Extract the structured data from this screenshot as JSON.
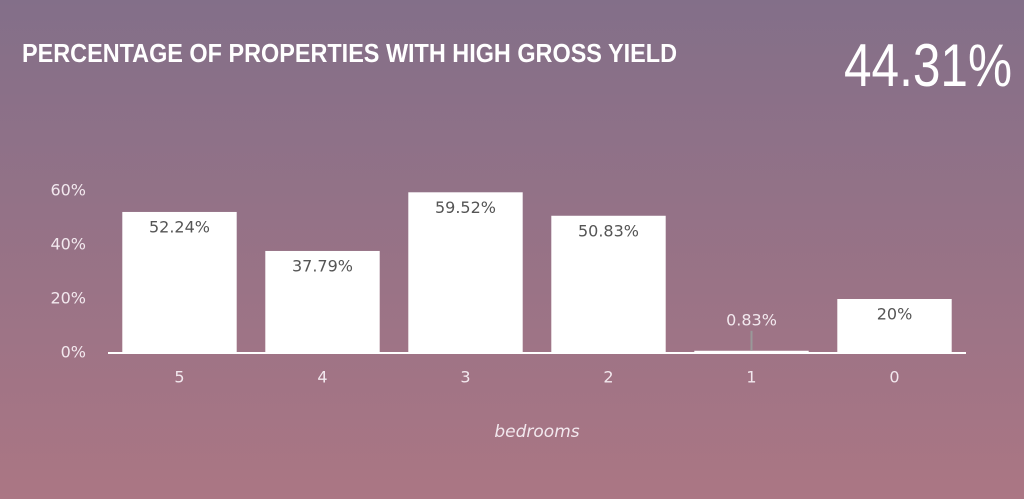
{
  "chart_data": {
    "type": "bar",
    "title": "PERCENTAGE OF PROPERTIES WITH HIGH GROSS YIELD",
    "kpi": "44.31%",
    "x_label": "bedrooms",
    "categories": [
      "5",
      "4",
      "3",
      "2",
      "1",
      "0"
    ],
    "values": [
      52.24,
      37.79,
      59.52,
      50.83,
      0.83,
      20
    ],
    "value_labels": [
      "52.24%",
      "37.79%",
      "59.52%",
      "50.83%",
      "0.83%",
      "20%"
    ],
    "color": "#ffffff",
    "ylim": [
      0,
      60
    ],
    "yticks": [
      {
        "value": 0,
        "label": "0%"
      },
      {
        "value": 20,
        "label": "20%"
      },
      {
        "value": 40,
        "label": "40%"
      },
      {
        "value": 60,
        "label": "60%"
      }
    ],
    "grid": false
  }
}
